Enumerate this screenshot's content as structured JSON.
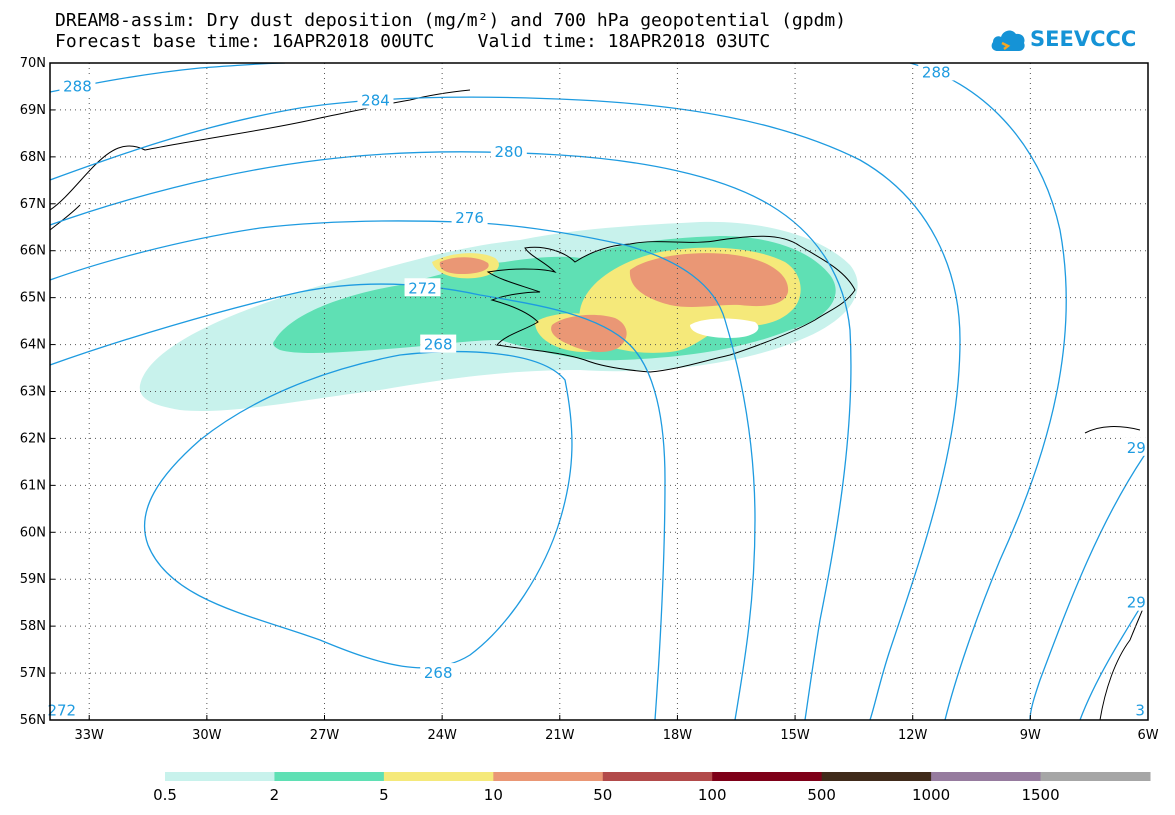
{
  "title": {
    "line1": "DREAM8-assim: Dry dust deposition (mg/m²) and 700 hPa geopotential (gpdm)",
    "line2": "Forecast base time: 16APR2018 00UTC    Valid time: 18APR2018 03UTC"
  },
  "logo": {
    "text": "SEEVCCC",
    "icon": "cloud-icon",
    "color": "#1593d6"
  },
  "map": {
    "lat_range": [
      56,
      70
    ],
    "lon_range": [
      -34,
      -6
    ],
    "lat_labels": [
      "70N",
      "69N",
      "68N",
      "67N",
      "66N",
      "65N",
      "64N",
      "63N",
      "62N",
      "61N",
      "60N",
      "59N",
      "58N",
      "57N",
      "56N"
    ],
    "lon_labels": [
      {
        "lon": -33,
        "label": "33W"
      },
      {
        "lon": -30,
        "label": "30W"
      },
      {
        "lon": -27,
        "label": "27W"
      },
      {
        "lon": -24,
        "label": "24W"
      },
      {
        "lon": -21,
        "label": "21W"
      },
      {
        "lon": -18,
        "label": "18W"
      },
      {
        "lon": -15,
        "label": "15W"
      },
      {
        "lon": -12,
        "label": "12W"
      },
      {
        "lon": -9,
        "label": "9W"
      },
      {
        "lon": -6,
        "label": "6W"
      }
    ],
    "contour_color": "#1e9be0",
    "contour_labels": [
      {
        "text": "288",
        "lon": -33.3,
        "lat": 69.5
      },
      {
        "text": "284",
        "lon": -25.7,
        "lat": 69.2
      },
      {
        "text": "280",
        "lon": -22.3,
        "lat": 68.1
      },
      {
        "text": "276",
        "lon": -23.3,
        "lat": 66.7
      },
      {
        "text": "272",
        "lon": -24.5,
        "lat": 65.2
      },
      {
        "text": "268",
        "lon": -24.1,
        "lat": 64.0
      },
      {
        "text": "268",
        "lon": -24.1,
        "lat": 57.0
      },
      {
        "text": "288",
        "lon": -11.4,
        "lat": 69.8
      },
      {
        "text": "29",
        "lon": -6.3,
        "lat": 61.8
      },
      {
        "text": "29",
        "lon": -6.3,
        "lat": 58.5
      },
      {
        "text": "272",
        "lon": -33.7,
        "lat": 56.2
      },
      {
        "text": "3",
        "lon": -6.2,
        "lat": 56.2
      }
    ]
  },
  "colorbar": {
    "colors": [
      "#c8f2ec",
      "#5fe0b4",
      "#f5e97a",
      "#ea9775",
      "#b24a4a",
      "#7e0018",
      "#402a1a",
      "#967b9e",
      "#a6a6a6"
    ],
    "labels": [
      "0.5",
      "2",
      "5",
      "10",
      "50",
      "100",
      "500",
      "1000",
      "1500"
    ]
  }
}
